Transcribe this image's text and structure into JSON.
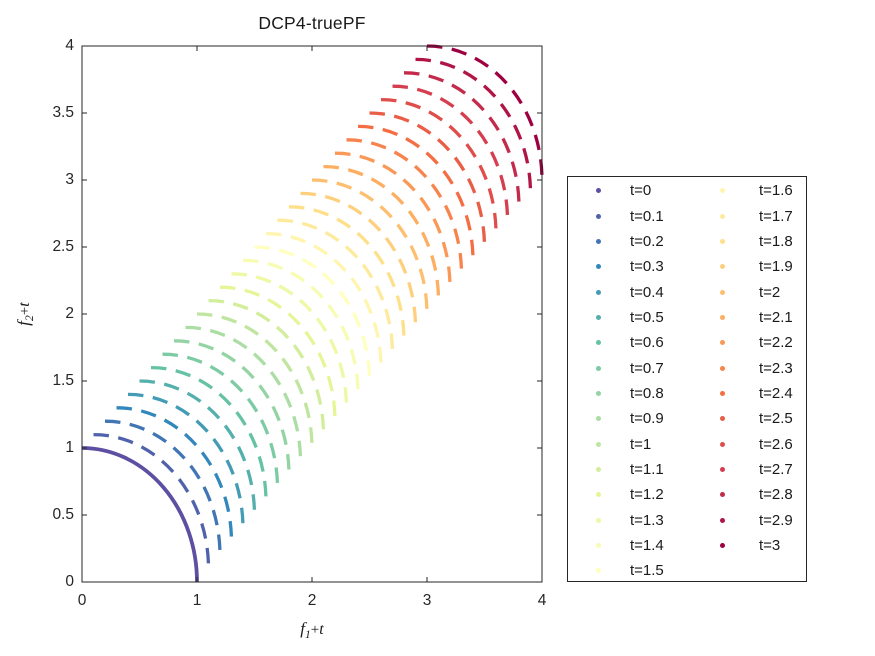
{
  "title": "DCP4-truePF",
  "axes": {
    "xlabel": {
      "base": "f",
      "sub": "1",
      "plus": "+",
      "var": "t"
    },
    "ylabel": {
      "base": "f",
      "sub": "2",
      "plus": "+",
      "var": "t"
    },
    "x_tick_labels": [
      "0",
      "1",
      "2",
      "3",
      "4"
    ],
    "y_tick_labels": [
      "0",
      "0.5",
      "1",
      "1.5",
      "2",
      "2.5",
      "3",
      "3.5",
      "4"
    ],
    "x_range": [
      0,
      4
    ],
    "y_range": [
      0,
      4
    ]
  },
  "colors": {
    "axis": "#262626",
    "background": "#ffffff",
    "colormap_start": "#5e4fa2",
    "colormap_end": "#9e0142"
  },
  "chart_data": {
    "type": "line",
    "title": "DCP4-truePF",
    "xlabel": "f1+t",
    "ylabel": "f2+t",
    "xlim": [
      0,
      4
    ],
    "ylim": [
      0,
      4
    ],
    "grid": false,
    "legend_position": "outside-right-2-columns",
    "description": "True Pareto fronts of DCP4 at 31 time steps. Each series is the quarter-circle arc (f1+t, f2+t) with f1=cos(theta), f2=sin(theta), theta in [0deg,90deg]: an arc of radius 1 centered at (t,t) from (t, t+1) to (t+1, t). t=0 is solid; all others dashed. Colors follow a reversed Spectral colormap.",
    "series": [
      {
        "name": "t=0",
        "t": 0.0,
        "color": "#5e4fa2",
        "line_style": "solid",
        "center": [
          0.0,
          0.0
        ],
        "radius": 1,
        "start": [
          0.0,
          1.0
        ],
        "end": [
          1.0,
          0.0
        ]
      },
      {
        "name": "t=0.1",
        "t": 0.1,
        "color": "#4f62ab",
        "line_style": "dashed",
        "center": [
          0.1,
          0.1
        ],
        "radius": 1,
        "start": [
          0.1,
          1.1
        ],
        "end": [
          1.1,
          0.1
        ]
      },
      {
        "name": "t=0.2",
        "t": 0.2,
        "color": "#4175b4",
        "line_style": "dashed",
        "center": [
          0.2,
          0.2
        ],
        "radius": 1,
        "start": [
          0.2,
          1.2
        ],
        "end": [
          1.2,
          0.2
        ]
      },
      {
        "name": "t=0.3",
        "t": 0.3,
        "color": "#3288bd",
        "line_style": "dashed",
        "center": [
          0.3,
          0.3
        ],
        "radius": 1,
        "start": [
          0.3,
          1.3
        ],
        "end": [
          1.3,
          0.3
        ]
      },
      {
        "name": "t=0.4",
        "t": 0.4,
        "color": "#439bb5",
        "line_style": "dashed",
        "center": [
          0.4,
          0.4
        ],
        "radius": 1,
        "start": [
          0.4,
          1.4
        ],
        "end": [
          1.4,
          0.4
        ]
      },
      {
        "name": "t=0.5",
        "t": 0.5,
        "color": "#55afad",
        "line_style": "dashed",
        "center": [
          0.5,
          0.5
        ],
        "radius": 1,
        "start": [
          0.5,
          1.5
        ],
        "end": [
          1.5,
          0.5
        ]
      },
      {
        "name": "t=0.6",
        "t": 0.6,
        "color": "#66c2a5",
        "line_style": "dashed",
        "center": [
          0.6,
          0.6
        ],
        "radius": 1,
        "start": [
          0.6,
          1.6
        ],
        "end": [
          1.6,
          0.6
        ]
      },
      {
        "name": "t=0.7",
        "t": 0.7,
        "color": "#7dcba5",
        "line_style": "dashed",
        "center": [
          0.7,
          0.7
        ],
        "radius": 1,
        "start": [
          0.7,
          1.7
        ],
        "end": [
          1.7,
          0.7
        ]
      },
      {
        "name": "t=0.8",
        "t": 0.8,
        "color": "#94d4a4",
        "line_style": "dashed",
        "center": [
          0.8,
          0.8
        ],
        "radius": 1,
        "start": [
          0.8,
          1.8
        ],
        "end": [
          1.8,
          0.8
        ]
      },
      {
        "name": "t=0.9",
        "t": 0.9,
        "color": "#abdda4",
        "line_style": "dashed",
        "center": [
          0.9,
          0.9
        ],
        "radius": 1,
        "start": [
          0.9,
          1.9
        ],
        "end": [
          1.9,
          0.9
        ]
      },
      {
        "name": "t=1",
        "t": 1.0,
        "color": "#bfe5a0",
        "line_style": "dashed",
        "center": [
          1.0,
          1.0
        ],
        "radius": 1,
        "start": [
          1.0,
          2.0
        ],
        "end": [
          2.0,
          1.0
        ]
      },
      {
        "name": "t=1.1",
        "t": 1.1,
        "color": "#d2ed9c",
        "line_style": "dashed",
        "center": [
          1.1,
          1.1
        ],
        "radius": 1,
        "start": [
          1.1,
          2.1
        ],
        "end": [
          2.1,
          1.1
        ]
      },
      {
        "name": "t=1.2",
        "t": 1.2,
        "color": "#e6f598",
        "line_style": "dashed",
        "center": [
          1.2,
          1.2
        ],
        "radius": 1,
        "start": [
          1.2,
          2.2
        ],
        "end": [
          2.2,
          1.2
        ]
      },
      {
        "name": "t=1.3",
        "t": 1.3,
        "color": "#eef8a5",
        "line_style": "dashed",
        "center": [
          1.3,
          1.3
        ],
        "radius": 1,
        "start": [
          1.3,
          2.3
        ],
        "end": [
          2.3,
          1.3
        ]
      },
      {
        "name": "t=1.4",
        "t": 1.4,
        "color": "#f7fcb2",
        "line_style": "dashed",
        "center": [
          1.4,
          1.4
        ],
        "radius": 1,
        "start": [
          1.4,
          2.4
        ],
        "end": [
          2.4,
          1.4
        ]
      },
      {
        "name": "t=1.5",
        "t": 1.5,
        "color": "#ffffbf",
        "line_style": "dashed",
        "center": [
          1.5,
          1.5
        ],
        "radius": 1,
        "start": [
          1.5,
          2.5
        ],
        "end": [
          2.5,
          1.5
        ]
      },
      {
        "name": "t=1.6",
        "t": 1.6,
        "color": "#fff5ae",
        "line_style": "dashed",
        "center": [
          1.6,
          1.6
        ],
        "radius": 1,
        "start": [
          1.6,
          2.6
        ],
        "end": [
          2.6,
          1.6
        ]
      },
      {
        "name": "t=1.7",
        "t": 1.7,
        "color": "#feea9c",
        "line_style": "dashed",
        "center": [
          1.7,
          1.7
        ],
        "radius": 1,
        "start": [
          1.7,
          2.7
        ],
        "end": [
          2.7,
          1.7
        ]
      },
      {
        "name": "t=1.8",
        "t": 1.8,
        "color": "#fee08b",
        "line_style": "dashed",
        "center": [
          1.8,
          1.8
        ],
        "radius": 1,
        "start": [
          1.8,
          2.8
        ],
        "end": [
          2.8,
          1.8
        ]
      },
      {
        "name": "t=1.9",
        "t": 1.9,
        "color": "#fecf7d",
        "line_style": "dashed",
        "center": [
          1.9,
          1.9
        ],
        "radius": 1,
        "start": [
          1.9,
          2.9
        ],
        "end": [
          2.9,
          1.9
        ]
      },
      {
        "name": "t=2",
        "t": 2.0,
        "color": "#fdbf6f",
        "line_style": "dashed",
        "center": [
          2.0,
          2.0
        ],
        "radius": 1,
        "start": [
          2.0,
          3.0
        ],
        "end": [
          3.0,
          2.0
        ]
      },
      {
        "name": "t=2.1",
        "t": 2.1,
        "color": "#fdae61",
        "line_style": "dashed",
        "center": [
          2.1,
          2.1
        ],
        "radius": 1,
        "start": [
          2.1,
          3.1
        ],
        "end": [
          3.1,
          2.1
        ]
      },
      {
        "name": "t=2.2",
        "t": 2.2,
        "color": "#fa9857",
        "line_style": "dashed",
        "center": [
          2.2,
          2.2
        ],
        "radius": 1,
        "start": [
          2.2,
          3.2
        ],
        "end": [
          3.2,
          2.2
        ]
      },
      {
        "name": "t=2.3",
        "t": 2.3,
        "color": "#f7834d",
        "line_style": "dashed",
        "center": [
          2.3,
          2.3
        ],
        "radius": 1,
        "start": [
          2.3,
          3.3
        ],
        "end": [
          3.3,
          2.3
        ]
      },
      {
        "name": "t=2.4",
        "t": 2.4,
        "color": "#f46d43",
        "line_style": "dashed",
        "center": [
          2.4,
          2.4
        ],
        "radius": 1,
        "start": [
          2.4,
          3.4
        ],
        "end": [
          3.4,
          2.4
        ]
      },
      {
        "name": "t=2.5",
        "t": 2.5,
        "color": "#ea5d47",
        "line_style": "dashed",
        "center": [
          2.5,
          2.5
        ],
        "radius": 1,
        "start": [
          2.5,
          3.5
        ],
        "end": [
          3.5,
          2.5
        ]
      },
      {
        "name": "t=2.6",
        "t": 2.6,
        "color": "#df4e4b",
        "line_style": "dashed",
        "center": [
          2.6,
          2.6
        ],
        "radius": 1,
        "start": [
          2.6,
          3.6
        ],
        "end": [
          3.6,
          2.6
        ]
      },
      {
        "name": "t=2.7",
        "t": 2.7,
        "color": "#d53e4f",
        "line_style": "dashed",
        "center": [
          2.7,
          2.7
        ],
        "radius": 1,
        "start": [
          2.7,
          3.7
        ],
        "end": [
          3.7,
          2.7
        ]
      },
      {
        "name": "t=2.8",
        "t": 2.8,
        "color": "#c32a4b",
        "line_style": "dashed",
        "center": [
          2.8,
          2.8
        ],
        "radius": 1,
        "start": [
          2.8,
          3.8
        ],
        "end": [
          3.8,
          2.8
        ]
      },
      {
        "name": "t=2.9",
        "t": 2.9,
        "color": "#b01546",
        "line_style": "dashed",
        "center": [
          2.9,
          2.9
        ],
        "radius": 1,
        "start": [
          2.9,
          3.9
        ],
        "end": [
          3.9,
          2.9
        ]
      },
      {
        "name": "t=3",
        "t": 3.0,
        "color": "#9e0142",
        "line_style": "dashed",
        "center": [
          3.0,
          3.0
        ],
        "radius": 1,
        "start": [
          3.0,
          4.0
        ],
        "end": [
          4.0,
          3.0
        ]
      }
    ],
    "legend_columns": [
      [
        "t=0",
        "t=0.1",
        "t=0.2",
        "t=0.3",
        "t=0.4",
        "t=0.5",
        "t=0.6",
        "t=0.7",
        "t=0.8",
        "t=0.9",
        "t=1",
        "t=1.1",
        "t=1.2",
        "t=1.3",
        "t=1.4",
        "t=1.5"
      ],
      [
        "t=1.6",
        "t=1.7",
        "t=1.8",
        "t=1.9",
        "t=2",
        "t=2.1",
        "t=2.2",
        "t=2.3",
        "t=2.4",
        "t=2.5",
        "t=2.6",
        "t=2.7",
        "t=2.8",
        "t=2.9",
        "t=3"
      ]
    ]
  }
}
